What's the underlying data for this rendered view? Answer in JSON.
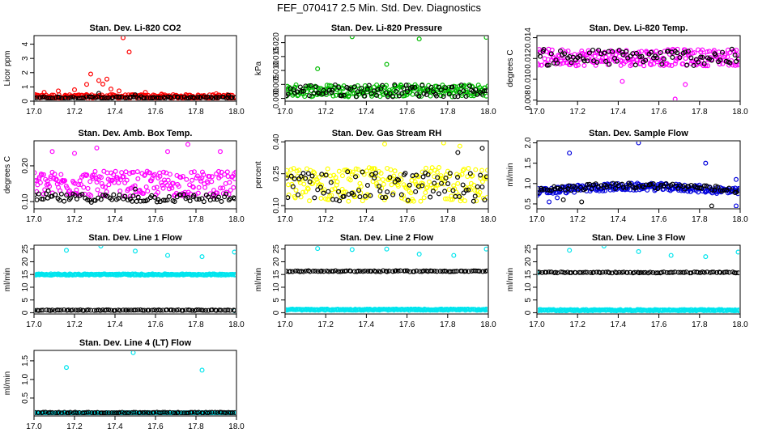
{
  "title": "FEF_070417  2.5 Min. Std. Dev. Diagnostics",
  "chart_data": [
    {
      "type": "scatter",
      "title": "Stan. Dev. Li-820 CO2",
      "ylabel": "Licor ppm",
      "xlim": [
        17.0,
        18.0
      ],
      "ylim": [
        0,
        4.6
      ],
      "xticks": [
        "17.0",
        "17.2",
        "17.4",
        "17.6",
        "17.8",
        "18.0"
      ],
      "yticks": [
        "0",
        "1",
        "2",
        "3",
        "4"
      ],
      "series": [
        {
          "color": "#ff0000",
          "baseline": 0.32,
          "spread": 0.14,
          "outliers": [
            [
              17.05,
              0.62
            ],
            [
              17.12,
              0.72
            ],
            [
              17.2,
              0.8
            ],
            [
              17.26,
              1.18
            ],
            [
              17.28,
              1.9
            ],
            [
              17.32,
              1.45
            ],
            [
              17.34,
              1.2
            ],
            [
              17.36,
              1.55
            ],
            [
              17.38,
              0.85
            ],
            [
              17.42,
              0.72
            ],
            [
              17.44,
              4.45
            ],
            [
              17.47,
              3.45
            ],
            [
              17.55,
              0.62
            ],
            [
              17.63,
              0.5
            ],
            [
              17.9,
              0.52
            ]
          ]
        },
        {
          "color": "#000000",
          "baseline": 0.25,
          "spread": 0.06,
          "outliers": [
            [
              17.32,
              0.55
            ],
            [
              17.5,
              0.45
            ],
            [
              17.96,
              0.42
            ]
          ]
        }
      ]
    },
    {
      "type": "scatter",
      "title": "Stan. Dev. Li-820 Pressure",
      "ylabel": "kPa",
      "xlim": [
        17.0,
        18.0
      ],
      "ylim": [
        -0.001,
        0.0225
      ],
      "xticks": [
        "17.0",
        "17.2",
        "17.4",
        "17.6",
        "17.8",
        "18.0"
      ],
      "yticks": [
        "0.000",
        "0.005",
        "0.010",
        "0.015",
        "0.020"
      ],
      "series": [
        {
          "color": "#00bb00",
          "baseline": 0.0028,
          "spread": 0.0022,
          "outliers": [
            [
              17.16,
              0.0106
            ],
            [
              17.33,
              0.0221
            ],
            [
              17.5,
              0.0122
            ],
            [
              17.66,
              0.0213
            ],
            [
              17.99,
              0.0219
            ]
          ]
        },
        {
          "color": "#000000",
          "baseline": 0.0028,
          "spread": 0.0022,
          "outliers": []
        }
      ]
    },
    {
      "type": "scatter",
      "title": "Stan. Dev. Li-820 Temp.",
      "ylabel": "degrees C",
      "xlim": [
        17.0,
        18.0
      ],
      "ylim": [
        0.0079,
        0.0142
      ],
      "xticks": [
        "17.0",
        "17.2",
        "17.4",
        "17.6",
        "17.8",
        "18.0"
      ],
      "yticks": [
        "0.008",
        "0.010",
        "0.012",
        "0.014"
      ],
      "series": [
        {
          "color": "#ff00ff",
          "baseline": 0.0121,
          "spread": 0.0008,
          "outliers": [
            [
              17.68,
              0.0081
            ],
            [
              17.42,
              0.0098
            ],
            [
              17.73,
              0.0095
            ]
          ]
        },
        {
          "color": "#000000",
          "baseline": 0.0121,
          "spread": 0.0008,
          "outliers": []
        }
      ]
    },
    {
      "type": "scatter",
      "title": "Stan. Dev. Amb. Box Temp.",
      "ylabel": "degrees C",
      "xlim": [
        17.0,
        18.0
      ],
      "ylim": [
        0.08,
        0.27
      ],
      "xticks": [
        "17.0",
        "17.2",
        "17.4",
        "17.6",
        "17.8",
        "18.0"
      ],
      "yticks": [
        "0.10",
        "0.20"
      ],
      "series": [
        {
          "color": "#ff00ff",
          "baseline": 0.15,
          "spread": 0.035,
          "outliers": [
            [
              17.09,
              0.24
            ],
            [
              17.2,
              0.235
            ],
            [
              17.31,
              0.25
            ],
            [
              17.66,
              0.24
            ],
            [
              17.76,
              0.26
            ],
            [
              17.92,
              0.24
            ]
          ]
        },
        {
          "color": "#000000",
          "baseline": 0.11,
          "spread": 0.012,
          "outliers": [
            [
              17.07,
              0.13
            ],
            [
              17.5,
              0.135
            ]
          ]
        }
      ]
    },
    {
      "type": "scatter",
      "title": "Stan. Dev. Gas Stream RH",
      "ylabel": "percent",
      "xlim": [
        17.0,
        18.0
      ],
      "ylim": [
        0.085,
        0.405
      ],
      "xticks": [
        "17.0",
        "17.2",
        "17.4",
        "17.6",
        "17.8",
        "18.0"
      ],
      "yticks": [
        "0.10",
        "0.25",
        "0.40"
      ],
      "series": [
        {
          "color": "#ffff00",
          "baseline": 0.2,
          "spread": 0.08,
          "outliers": [
            [
              17.78,
              0.395
            ],
            [
              17.86,
              0.38
            ],
            [
              17.49,
              0.39
            ]
          ]
        },
        {
          "color": "#000000",
          "baseline": 0.19,
          "spread": 0.07,
          "outliers": [
            [
              17.97,
              0.37
            ],
            [
              17.85,
              0.35
            ]
          ]
        }
      ]
    },
    {
      "type": "scatter",
      "title": "Stan. Dev. Sample Flow",
      "ylabel": "ml/min",
      "xlim": [
        17.0,
        18.0
      ],
      "ylim": [
        0.38,
        2.05
      ],
      "xticks": [
        "17.0",
        "17.2",
        "17.4",
        "17.6",
        "17.8",
        "18.0"
      ],
      "yticks": [
        "0.5",
        "1.0",
        "1.5",
        "2.0"
      ],
      "series": [
        {
          "color": "#0000dd",
          "baseline": 0.92,
          "spread": 0.09,
          "curve": 0.13,
          "outliers": [
            [
              17.16,
              1.75
            ],
            [
              17.5,
              2.0
            ],
            [
              17.83,
              1.5
            ],
            [
              17.98,
              1.1
            ],
            [
              17.06,
              0.55
            ],
            [
              17.98,
              0.45
            ],
            [
              17.1,
              0.65
            ]
          ]
        },
        {
          "color": "#000000",
          "baseline": 0.95,
          "spread": 0.07,
          "curve": 0.13,
          "outliers": [
            [
              17.13,
              0.6
            ],
            [
              17.22,
              0.55
            ],
            [
              17.86,
              0.45
            ]
          ]
        }
      ]
    },
    {
      "type": "scatter",
      "title": "Stan. Dev. Line 1 Flow",
      "ylabel": "ml/min",
      "xlim": [
        17.0,
        18.0
      ],
      "ylim": [
        -0.5,
        26.5
      ],
      "xticks": [
        "17.0",
        "17.2",
        "17.4",
        "17.6",
        "17.8",
        "18.0"
      ],
      "yticks": [
        "0",
        "5",
        "10",
        "15",
        "20",
        "25"
      ],
      "series": [
        {
          "color": "#00e5ee",
          "baseline": 15,
          "spread": 0.25,
          "outliers": [
            [
              17.16,
              24.5
            ],
            [
              17.33,
              26.2
            ],
            [
              17.5,
              24.2
            ],
            [
              17.66,
              22.5
            ],
            [
              17.83,
              22
            ],
            [
              17.99,
              23.8
            ],
            [
              17.0,
              0.9
            ],
            [
              17.99,
              0.8
            ]
          ]
        },
        {
          "color": "#000000",
          "baseline": 1.0,
          "spread": 0.15,
          "outliers": []
        }
      ]
    },
    {
      "type": "scatter",
      "title": "Stan. Dev. Line 2 Flow",
      "ylabel": "ml/min",
      "xlim": [
        17.0,
        18.0
      ],
      "ylim": [
        -0.5,
        26.5
      ],
      "xticks": [
        "17.0",
        "17.2",
        "17.4",
        "17.6",
        "17.8",
        "18.0"
      ],
      "yticks": [
        "0",
        "5",
        "10",
        "15",
        "20",
        "25"
      ],
      "series": [
        {
          "color": "#00e5ee",
          "baseline": 1.2,
          "spread": 0.25,
          "outliers": [
            [
              17.16,
              25.2
            ],
            [
              17.33,
              24.8
            ],
            [
              17.5,
              25
            ],
            [
              17.66,
              23
            ],
            [
              17.83,
              22.5
            ],
            [
              17.99,
              25
            ]
          ]
        },
        {
          "color": "#000000",
          "baseline": 16.3,
          "spread": 0.2,
          "outliers": []
        }
      ]
    },
    {
      "type": "scatter",
      "title": "Stan. Dev. Line 3 Flow",
      "ylabel": "ml/min",
      "xlim": [
        17.0,
        18.0
      ],
      "ylim": [
        -0.5,
        26.5
      ],
      "xticks": [
        "17.0",
        "17.2",
        "17.4",
        "17.6",
        "17.8",
        "18.0"
      ],
      "yticks": [
        "0",
        "5",
        "10",
        "15",
        "20",
        "25"
      ],
      "series": [
        {
          "color": "#00e5ee",
          "baseline": 1.0,
          "spread": 0.25,
          "outliers": [
            [
              17.16,
              24.5
            ],
            [
              17.33,
              26.2
            ],
            [
              17.5,
              24
            ],
            [
              17.66,
              22.5
            ],
            [
              17.83,
              22
            ],
            [
              17.99,
              23.8
            ],
            [
              17.0,
              15.5
            ]
          ]
        },
        {
          "color": "#000000",
          "baseline": 15.8,
          "spread": 0.2,
          "outliers": []
        }
      ]
    },
    {
      "type": "scatter",
      "title": "Stan. Dev. Line 4 (LT) Flow",
      "ylabel": "ml/min",
      "xlim": [
        17.0,
        18.0
      ],
      "ylim": [
        0.02,
        1.78
      ],
      "xticks": [
        "17.0",
        "17.2",
        "17.4",
        "17.6",
        "17.8",
        "18.0"
      ],
      "yticks": [
        "0.5",
        "1.0",
        "1.5"
      ],
      "series": [
        {
          "color": "#00e5ee",
          "baseline": 0.1,
          "spread": 0.01,
          "outliers": [
            [
              17.16,
              1.32
            ],
            [
              17.49,
              1.72
            ],
            [
              17.83,
              1.25
            ]
          ]
        },
        {
          "color": "#000000",
          "baseline": 0.11,
          "spread": 0.01,
          "outliers": []
        }
      ]
    }
  ]
}
